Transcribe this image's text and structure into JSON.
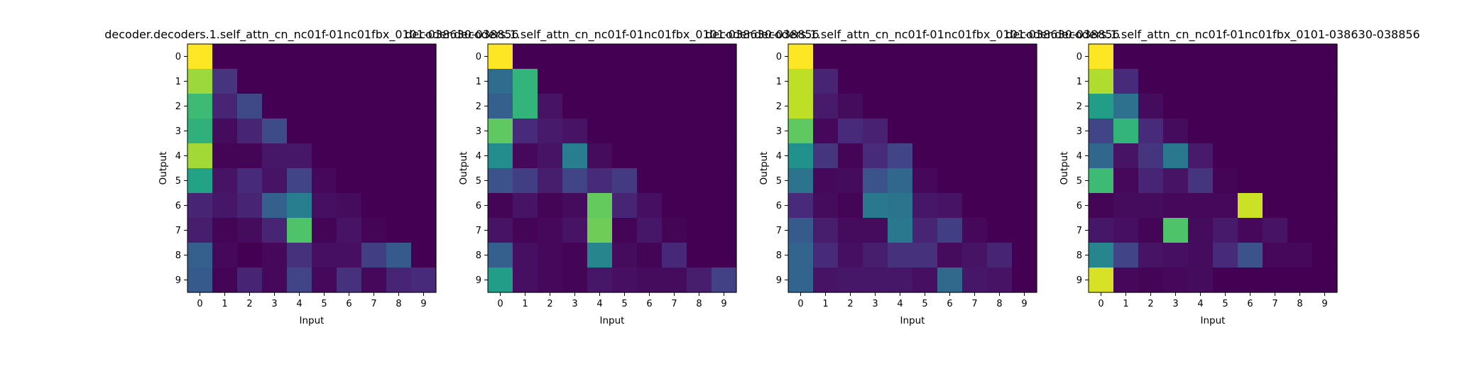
{
  "colormap": "viridis",
  "chart_data": [
    {
      "type": "heatmap",
      "title": "decoder.decoders.1.self_attn_cn_nc01f-01nc01fbx_0101-038630-038856",
      "xlabel": "Input",
      "ylabel": "Output",
      "x_ticks": [
        "0",
        "1",
        "2",
        "3",
        "4",
        "5",
        "6",
        "7",
        "8",
        "9"
      ],
      "y_ticks": [
        "0",
        "1",
        "2",
        "3",
        "4",
        "5",
        "6",
        "7",
        "8",
        "9"
      ],
      "z": [
        [
          1.0,
          0,
          0,
          0,
          0,
          0,
          0,
          0,
          0,
          0
        ],
        [
          0.85,
          0.15,
          0,
          0,
          0,
          0,
          0,
          0,
          0,
          0
        ],
        [
          0.68,
          0.1,
          0.22,
          0,
          0,
          0,
          0,
          0,
          0,
          0
        ],
        [
          0.64,
          0.03,
          0.1,
          0.23,
          0,
          0,
          0,
          0,
          0,
          0
        ],
        [
          0.86,
          0.01,
          0.01,
          0.06,
          0.06,
          0,
          0,
          0,
          0,
          0
        ],
        [
          0.58,
          0.05,
          0.12,
          0.05,
          0.2,
          0.02,
          0,
          0,
          0,
          0
        ],
        [
          0.1,
          0.06,
          0.1,
          0.3,
          0.42,
          0.04,
          0.03,
          0,
          0,
          0
        ],
        [
          0.08,
          0.01,
          0.03,
          0.1,
          0.72,
          0.01,
          0.05,
          0.01,
          0,
          0
        ],
        [
          0.3,
          0.02,
          0,
          0.02,
          0.14,
          0.04,
          0.04,
          0.18,
          0.28,
          0
        ],
        [
          0.28,
          0.01,
          0.1,
          0.02,
          0.2,
          0.02,
          0.14,
          0.02,
          0.1,
          0.12
        ]
      ]
    },
    {
      "type": "heatmap",
      "title": "decoder.decoders.1.self_attn_cn_nc01f-01nc01fbx_0101-038630-038856",
      "xlabel": "Input",
      "ylabel": "Output",
      "x_ticks": [
        "0",
        "1",
        "2",
        "3",
        "4",
        "5",
        "6",
        "7",
        "8",
        "9"
      ],
      "y_ticks": [
        "0",
        "1",
        "2",
        "3",
        "4",
        "5",
        "6",
        "7",
        "8",
        "9"
      ],
      "z": [
        [
          1.0,
          0,
          0,
          0,
          0,
          0,
          0,
          0,
          0,
          0
        ],
        [
          0.35,
          0.65,
          0,
          0,
          0,
          0,
          0,
          0,
          0,
          0
        ],
        [
          0.3,
          0.65,
          0.05,
          0,
          0,
          0,
          0,
          0,
          0,
          0
        ],
        [
          0.75,
          0.12,
          0.07,
          0.05,
          0,
          0,
          0,
          0,
          0,
          0
        ],
        [
          0.48,
          0.02,
          0.05,
          0.42,
          0.03,
          0,
          0,
          0,
          0,
          0
        ],
        [
          0.25,
          0.18,
          0.08,
          0.2,
          0.12,
          0.17,
          0,
          0,
          0,
          0
        ],
        [
          0.01,
          0.05,
          0.01,
          0.03,
          0.76,
          0.1,
          0.04,
          0,
          0,
          0
        ],
        [
          0.05,
          0.01,
          0.02,
          0.05,
          0.78,
          0.01,
          0.06,
          0.01,
          0,
          0
        ],
        [
          0.3,
          0.04,
          0.02,
          0.01,
          0.45,
          0.03,
          0.01,
          0.11,
          0,
          0
        ],
        [
          0.55,
          0.04,
          0.02,
          0.01,
          0.06,
          0.04,
          0.03,
          0.03,
          0.08,
          0.19
        ]
      ]
    },
    {
      "type": "heatmap",
      "title": "decoder.decoders.1.self_attn_cn_nc01f-01nc01fbx_0101-038630-038856",
      "xlabel": "Input",
      "ylabel": "Output",
      "x_ticks": [
        "0",
        "1",
        "2",
        "3",
        "4",
        "5",
        "6",
        "7",
        "8",
        "9"
      ],
      "y_ticks": [
        "0",
        "1",
        "2",
        "3",
        "4",
        "5",
        "6",
        "7",
        "8",
        "9"
      ],
      "z": [
        [
          1.0,
          0,
          0,
          0,
          0,
          0,
          0,
          0,
          0,
          0
        ],
        [
          0.9,
          0.1,
          0,
          0,
          0,
          0,
          0,
          0,
          0,
          0
        ],
        [
          0.9,
          0.07,
          0.03,
          0,
          0,
          0,
          0,
          0,
          0,
          0
        ],
        [
          0.75,
          0.02,
          0.12,
          0.09,
          0,
          0,
          0,
          0,
          0,
          0
        ],
        [
          0.5,
          0.15,
          0.01,
          0.12,
          0.2,
          0,
          0,
          0,
          0,
          0
        ],
        [
          0.38,
          0.02,
          0.03,
          0.25,
          0.33,
          0.02,
          0,
          0,
          0,
          0
        ],
        [
          0.12,
          0.03,
          0.01,
          0.4,
          0.38,
          0.06,
          0.05,
          0,
          0,
          0
        ],
        [
          0.28,
          0.08,
          0.03,
          0.03,
          0.4,
          0.1,
          0.18,
          0.02,
          0,
          0
        ],
        [
          0.32,
          0.12,
          0.04,
          0.08,
          0.14,
          0.14,
          0.03,
          0.05,
          0.1,
          0
        ],
        [
          0.32,
          0.05,
          0.06,
          0.06,
          0.06,
          0.04,
          0.34,
          0.06,
          0.05,
          0
        ]
      ]
    },
    {
      "type": "heatmap",
      "title": "decoder.decoders.1.self_attn_cn_nc01f-01nc01fbx_0101-038630-038856",
      "xlabel": "Input",
      "ylabel": "Output",
      "x_ticks": [
        "0",
        "1",
        "2",
        "3",
        "4",
        "5",
        "6",
        "7",
        "8",
        "9"
      ],
      "y_ticks": [
        "0",
        "1",
        "2",
        "3",
        "4",
        "5",
        "6",
        "7",
        "8",
        "9"
      ],
      "z": [
        [
          1.0,
          0,
          0,
          0,
          0,
          0,
          0,
          0,
          0,
          0
        ],
        [
          0.88,
          0.12,
          0,
          0,
          0,
          0,
          0,
          0,
          0,
          0
        ],
        [
          0.55,
          0.37,
          0.03,
          0,
          0,
          0,
          0,
          0,
          0,
          0
        ],
        [
          0.2,
          0.65,
          0.12,
          0.03,
          0,
          0,
          0,
          0,
          0,
          0
        ],
        [
          0.33,
          0.05,
          0.15,
          0.4,
          0.07,
          0,
          0,
          0,
          0,
          0
        ],
        [
          0.68,
          0.02,
          0.1,
          0.05,
          0.15,
          0.01,
          0,
          0,
          0,
          0
        ],
        [
          0.01,
          0.03,
          0.03,
          0.02,
          0.02,
          0.02,
          0.92,
          0,
          0,
          0
        ],
        [
          0.06,
          0.04,
          0.01,
          0.72,
          0.03,
          0.07,
          0.02,
          0.05,
          0,
          0
        ],
        [
          0.45,
          0.2,
          0.05,
          0.04,
          0.03,
          0.12,
          0.25,
          0.02,
          0.02,
          0
        ],
        [
          0.94,
          0.02,
          0.01,
          0.02,
          0.03,
          0,
          0,
          0,
          0,
          0
        ]
      ]
    }
  ]
}
